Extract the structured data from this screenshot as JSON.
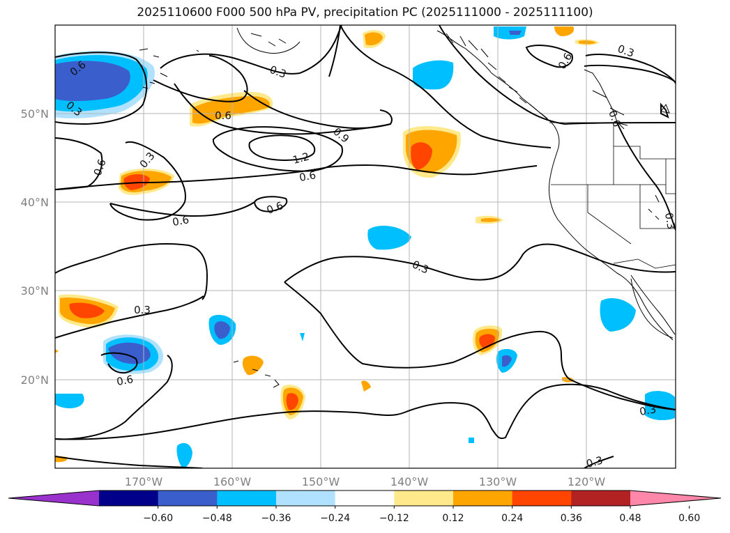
{
  "title": "2025110600 F000 500 hPa PV, precipitation PC (2025111000 - 2025111100)",
  "lon_ticks": [
    "170°W",
    "160°W",
    "150°W",
    "140°W",
    "130°W",
    "120°W"
  ],
  "lat_ticks": [
    "50°N",
    "40°N",
    "30°N",
    "20°N"
  ],
  "contour_labels": [
    "0.3",
    "0.6",
    "0.9",
    "1.2"
  ],
  "colorbar": {
    "ticks": [
      "−0.60",
      "−0.48",
      "−0.36",
      "−0.24",
      "−0.12",
      "0.12",
      "0.24",
      "0.36",
      "0.48",
      "0.60"
    ],
    "colors": [
      "#9932cc",
      "#00008b",
      "#3a5fcd",
      "#00bfff",
      "#b0e2ff",
      "#ffffff",
      "#ffe98a",
      "#ffa500",
      "#ff4500",
      "#b22222",
      "#ff88aa"
    ]
  }
}
